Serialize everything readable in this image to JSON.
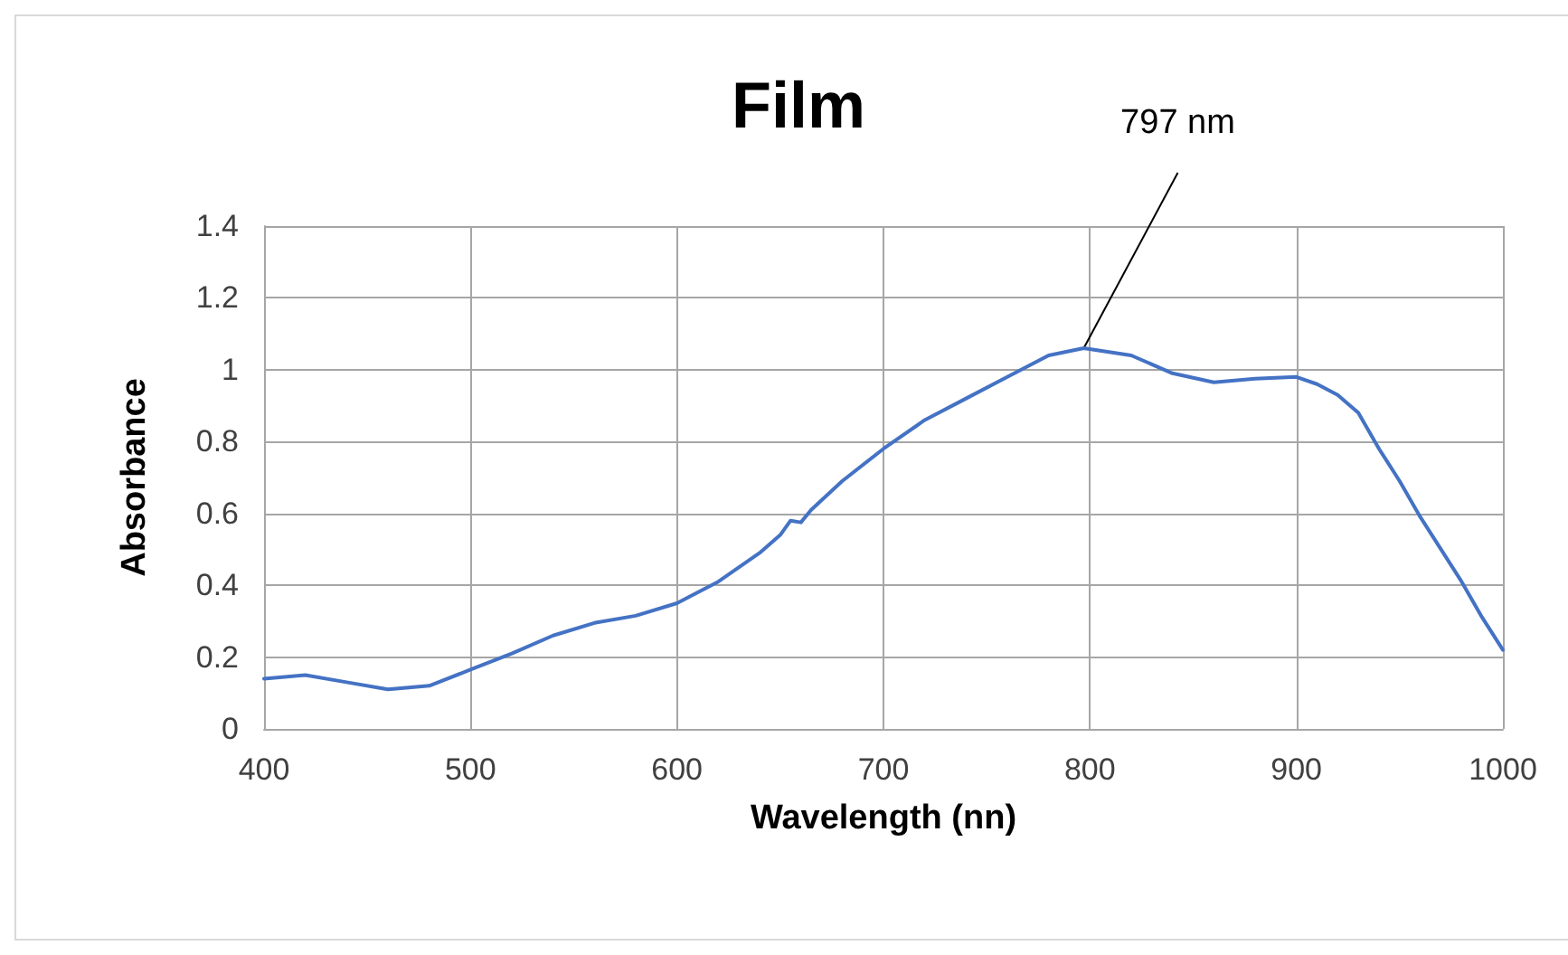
{
  "chart_data": {
    "type": "line",
    "title": "Film",
    "xlabel": "Wavelength (nn)",
    "ylabel": "Absorbance",
    "x": [
      400,
      420,
      440,
      460,
      480,
      500,
      520,
      540,
      560,
      580,
      600,
      620,
      640,
      650,
      655,
      660,
      665,
      680,
      700,
      720,
      740,
      760,
      780,
      797,
      820,
      840,
      860,
      880,
      900,
      910,
      920,
      930,
      940,
      950,
      960,
      970,
      980,
      990,
      1000
    ],
    "series": [
      {
        "color": "#4472c4",
        "values": [
          0.14,
          0.15,
          0.13,
          0.11,
          0.12,
          0.165,
          0.21,
          0.26,
          0.295,
          0.315,
          0.35,
          0.41,
          0.49,
          0.54,
          0.58,
          0.575,
          0.61,
          0.69,
          0.78,
          0.86,
          0.92,
          0.98,
          1.04,
          1.06,
          1.04,
          0.99,
          0.965,
          0.975,
          0.98,
          0.96,
          0.93,
          0.88,
          0.78,
          0.69,
          0.59,
          0.5,
          0.41,
          0.31,
          0.22
        ]
      }
    ],
    "xlim": [
      400,
      1000
    ],
    "xticks": [
      400,
      500,
      600,
      700,
      800,
      900,
      1000
    ],
    "ylim": [
      0,
      1.4
    ],
    "yticks": [
      0,
      0.2,
      0.4,
      0.6,
      0.8,
      1,
      1.2,
      1.4
    ],
    "grid": true,
    "marker": "none",
    "line_style": "solid",
    "annotations": [
      {
        "text": "797 nm",
        "x": 797,
        "y": 1.06
      }
    ]
  }
}
